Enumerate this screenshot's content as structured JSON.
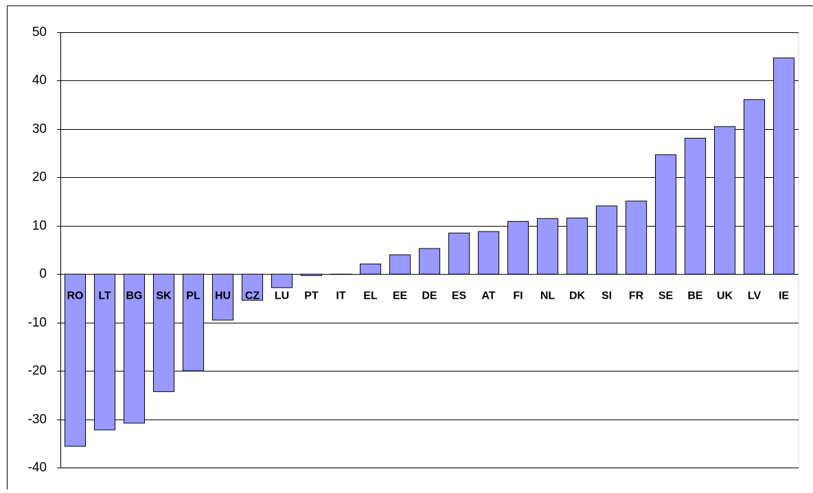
{
  "chart_data": {
    "type": "bar",
    "categories": [
      "RO",
      "LT",
      "BG",
      "SK",
      "PL",
      "HU",
      "CZ",
      "LU",
      "PT",
      "IT",
      "EL",
      "EE",
      "DE",
      "ES",
      "AT",
      "FI",
      "NL",
      "DK",
      "SI",
      "FR",
      "SE",
      "BE",
      "UK",
      "LV",
      "IE"
    ],
    "values": [
      -35.6,
      -32.2,
      -30.8,
      -24.3,
      -20.0,
      -9.5,
      -5.4,
      -2.8,
      -0.3,
      0,
      2.1,
      4.0,
      5.3,
      8.5,
      8.8,
      10.9,
      11.5,
      11.6,
      14.1,
      15.1,
      24.7,
      28.1,
      30.5,
      36.1,
      44.7
    ],
    "color": "#9999ff",
    "ylim": [
      -40,
      50
    ],
    "yticks": [
      -40,
      -30,
      -20,
      -10,
      0,
      10,
      20,
      30,
      40,
      50
    ],
    "grid": true
  }
}
